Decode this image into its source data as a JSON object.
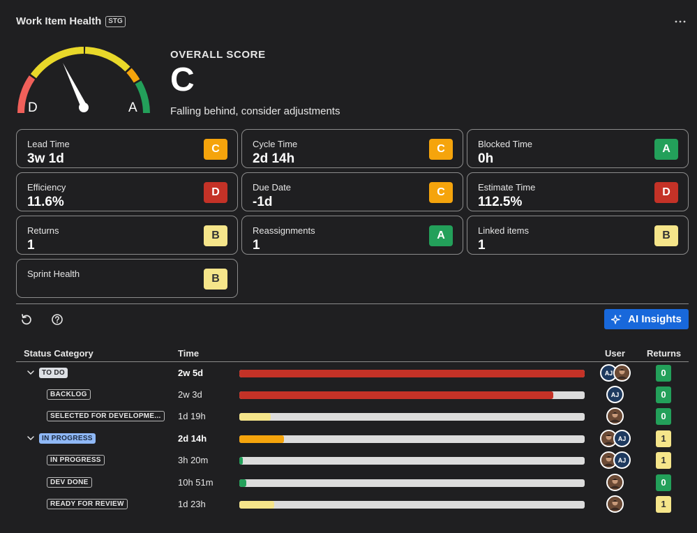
{
  "header": {
    "title": "Work Item Health",
    "env_badge": "STG",
    "more_icon": "more-horizontal-icon"
  },
  "gauge": {
    "min_label": "D",
    "max_label": "A",
    "needle_value": 0.4
  },
  "overall": {
    "label": "OVERALL SCORE",
    "grade": "C",
    "description": "Falling behind, consider adjustments"
  },
  "metrics": [
    {
      "label": "Lead Time",
      "value": "3w 1d",
      "grade": "C"
    },
    {
      "label": "Cycle Time",
      "value": "2d 14h",
      "grade": "C"
    },
    {
      "label": "Blocked Time",
      "value": "0h",
      "grade": "A"
    },
    {
      "label": "Efficiency",
      "value": "11.6%",
      "grade": "D"
    },
    {
      "label": "Due Date",
      "value": "-1d",
      "grade": "C"
    },
    {
      "label": "Estimate Time",
      "value": "112.5%",
      "grade": "D"
    },
    {
      "label": "Returns",
      "value": "1",
      "grade": "B"
    },
    {
      "label": "Reassignments",
      "value": "1",
      "grade": "A"
    },
    {
      "label": "Linked items",
      "value": "1",
      "grade": "B"
    },
    {
      "label": "Sprint Health",
      "value": "",
      "grade": "B"
    }
  ],
  "toolbar": {
    "refresh_icon": "refresh-icon",
    "help_icon": "help-icon",
    "ai_button": "AI Insights",
    "ai_icon": "sparkle-icon"
  },
  "table": {
    "headers": {
      "status": "Status Category",
      "time": "Time",
      "user": "User",
      "returns": "Returns"
    },
    "rows": [
      {
        "status": "TO DO",
        "level": 0,
        "style": "grey",
        "time": "2w 5d",
        "progress": 1.0,
        "bar_color": "#c43227",
        "users": [
          "AJ",
          "photo"
        ],
        "returns": "0"
      },
      {
        "status": "BACKLOG",
        "level": 1,
        "style": "outline",
        "time": "2w 3d",
        "progress": 0.91,
        "bar_color": "#c43227",
        "users": [
          "AJ"
        ],
        "returns": "0"
      },
      {
        "status": "SELECTED FOR DEVELOPME...",
        "level": 1,
        "style": "outline",
        "time": "1d 19h",
        "progress": 0.09,
        "bar_color": "#f5e58a",
        "users": [
          "photo"
        ],
        "returns": "0"
      },
      {
        "status": "IN PROGRESS",
        "level": 0,
        "style": "blue",
        "time": "2d 14h",
        "progress": 0.13,
        "bar_color": "#f5a40c",
        "users": [
          "photo",
          "AJ"
        ],
        "returns": "1"
      },
      {
        "status": "IN PROGRESS",
        "level": 1,
        "style": "outline",
        "time": "3h 20m",
        "progress": 0.01,
        "bar_color": "#23a05a",
        "users": [
          "photo",
          "AJ"
        ],
        "returns": "1"
      },
      {
        "status": "DEV DONE",
        "level": 1,
        "style": "outline",
        "time": "10h 51m",
        "progress": 0.02,
        "bar_color": "#23a05a",
        "users": [
          "photo"
        ],
        "returns": "0"
      },
      {
        "status": "READY FOR REVIEW",
        "level": 1,
        "style": "outline",
        "time": "1d 23h",
        "progress": 0.1,
        "bar_color": "#f5e58a",
        "users": [
          "photo"
        ],
        "returns": "1"
      }
    ]
  },
  "colors": {
    "grade_A": "#23a05a",
    "grade_B": "#f5e58a",
    "grade_C": "#f5a40c",
    "grade_D": "#c43227",
    "accent": "#1868db"
  }
}
